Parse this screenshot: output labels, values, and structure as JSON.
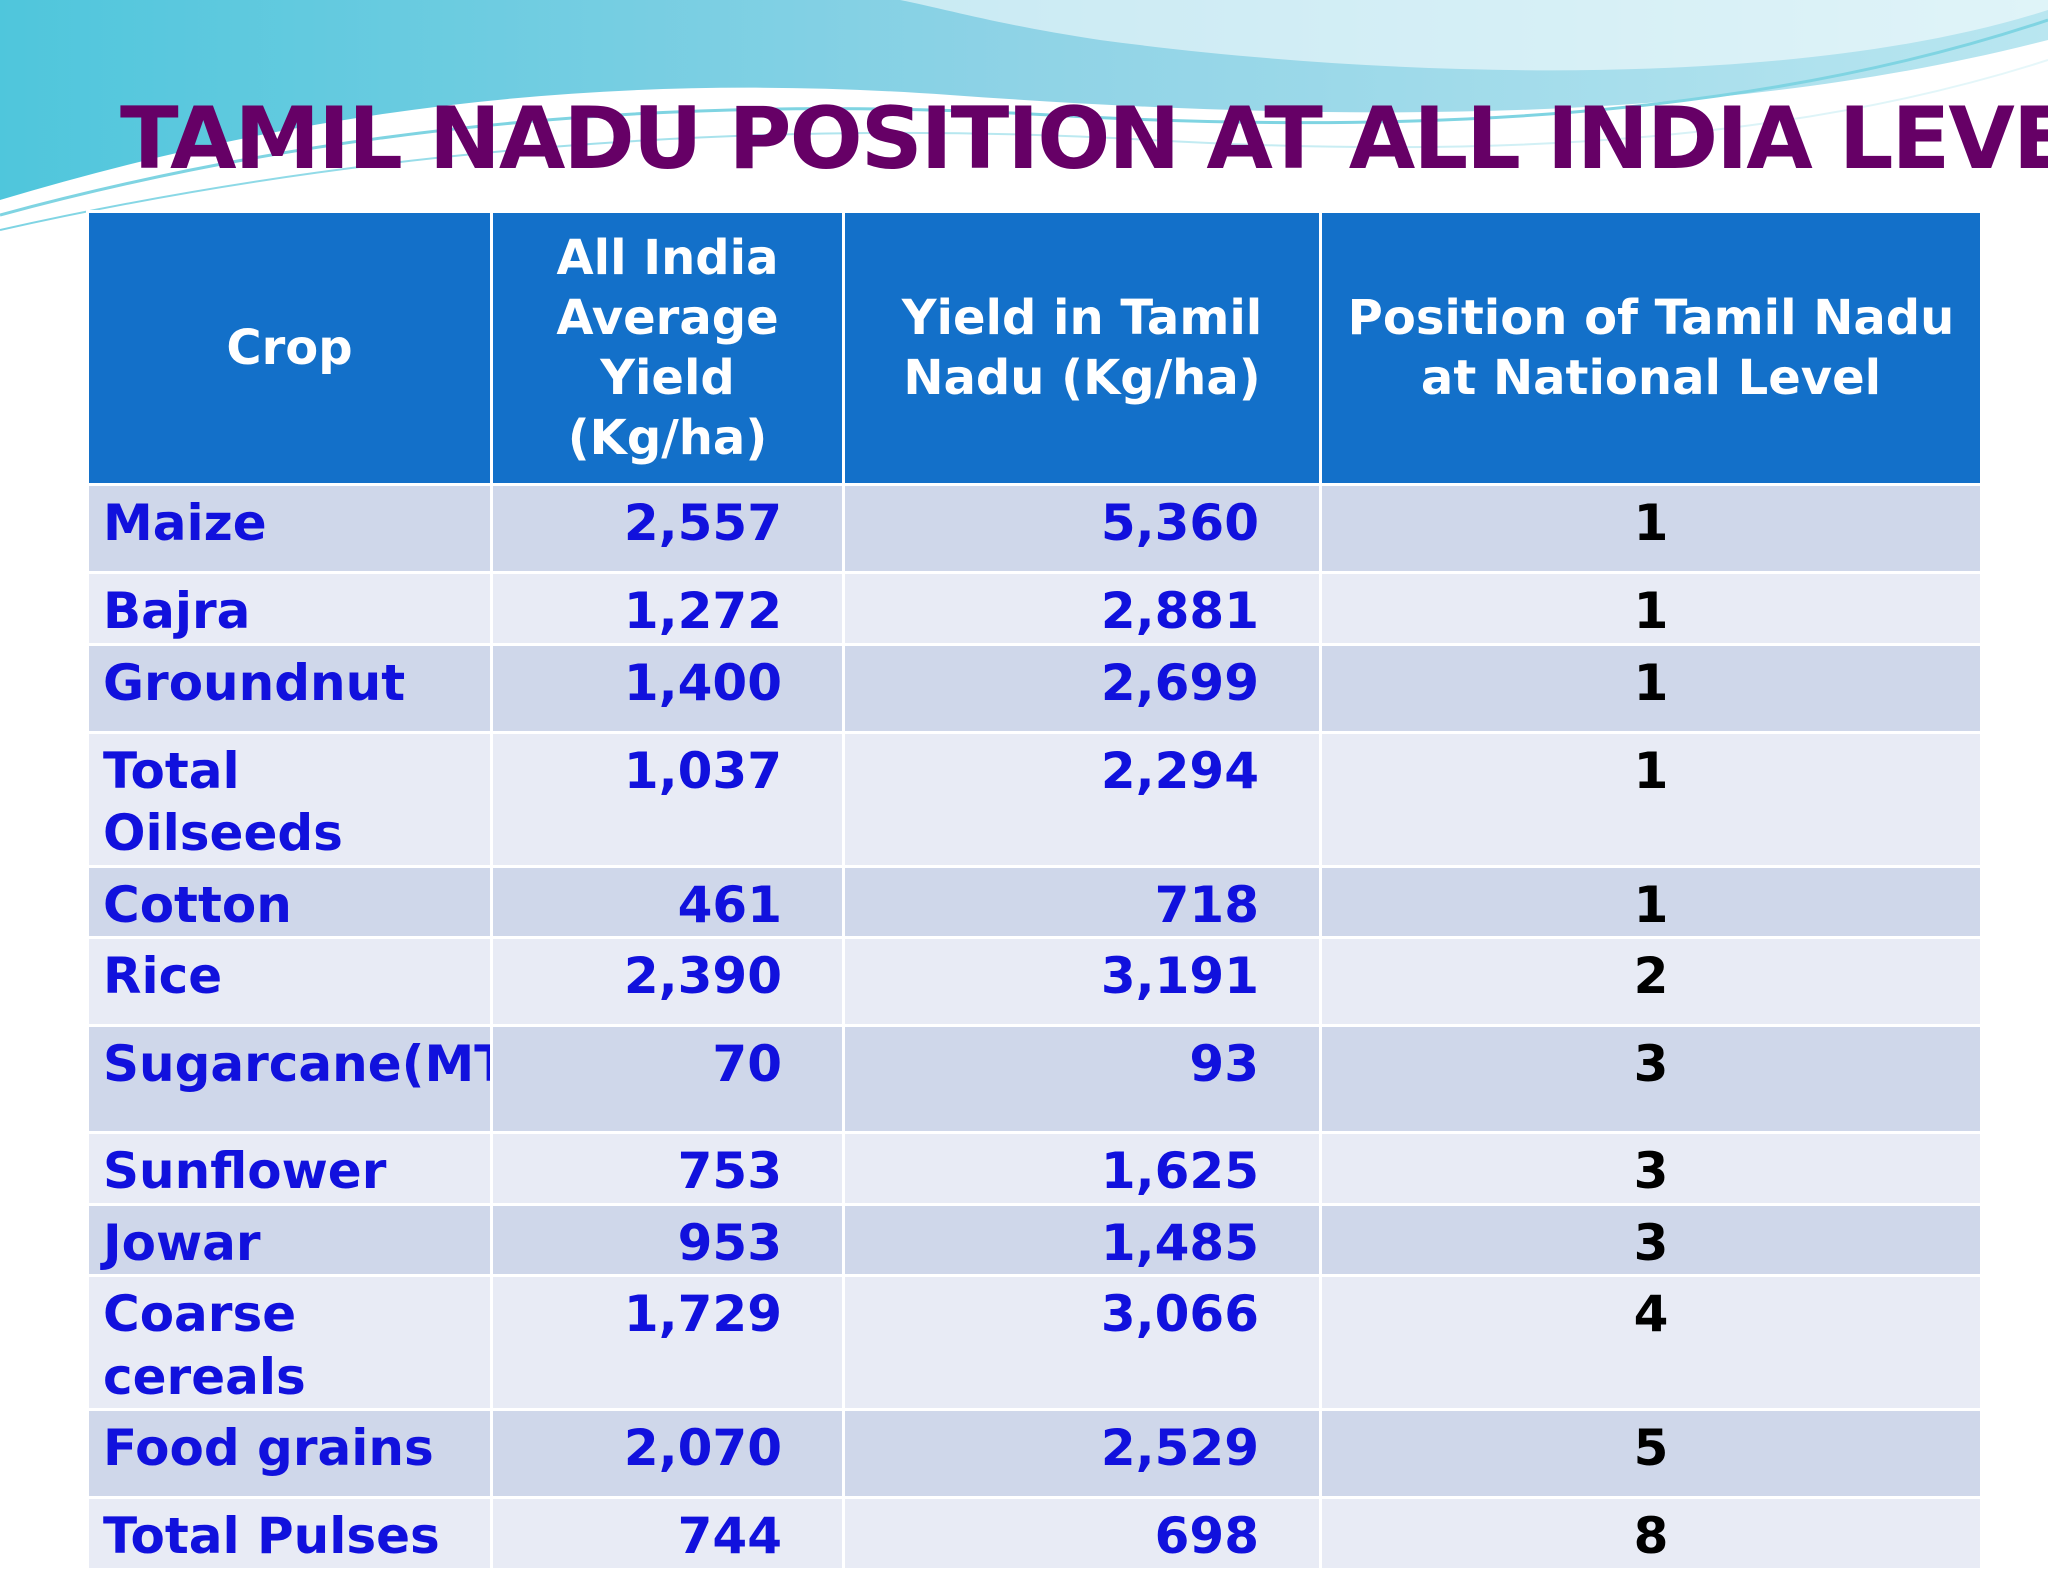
{
  "title": "TAMIL NADU POSITION AT ALL INDIA LEVEL",
  "colors": {
    "title": "#660066",
    "header_bg": "#1370c9",
    "crop_text": "#1111dd",
    "row_odd": "#cfd7ea",
    "row_even": "#e8ebf5"
  },
  "table": {
    "headers": [
      "Crop",
      "All India Average Yield (Kg/ha)",
      "Yield in Tamil Nadu (Kg/ha)",
      "Position of Tamil Nadu at National Level"
    ],
    "rows": [
      {
        "crop": "Maize",
        "all_india": "2,557",
        "tamil_nadu": "5,360",
        "position": "1"
      },
      {
        "crop": "Bajra",
        "all_india": "1,272",
        "tamil_nadu": "2,881",
        "position": "1"
      },
      {
        "crop": "Groundnut",
        "all_india": "1,400",
        "tamil_nadu": "2,699",
        "position": "1"
      },
      {
        "crop": "Total Oilseeds",
        "all_india": "1,037",
        "tamil_nadu": "2,294",
        "position": "1"
      },
      {
        "crop": "Cotton",
        "all_india": "461",
        "tamil_nadu": "718",
        "position": "1"
      },
      {
        "crop": "Rice",
        "all_india": "2,390",
        "tamil_nadu": "3,191",
        "position": "2"
      },
      {
        "crop": "Sugarcane(MT)",
        "all_india": "70",
        "tamil_nadu": "93",
        "position": "3"
      },
      {
        "crop": "Sunflower",
        "all_india": "753",
        "tamil_nadu": "1,625",
        "position": "3"
      },
      {
        "crop": "Jowar",
        "all_india": "953",
        "tamil_nadu": "1,485",
        "position": "3"
      },
      {
        "crop": "Coarse cereals",
        "all_india": "1,729",
        "tamil_nadu": "3,066",
        "position": "4"
      },
      {
        "crop": "Food grains",
        "all_india": "2,070",
        "tamil_nadu": "2,529",
        "position": "5"
      },
      {
        "crop": "Total Pulses",
        "all_india": "744",
        "tamil_nadu": "698",
        "position": "8"
      }
    ]
  }
}
